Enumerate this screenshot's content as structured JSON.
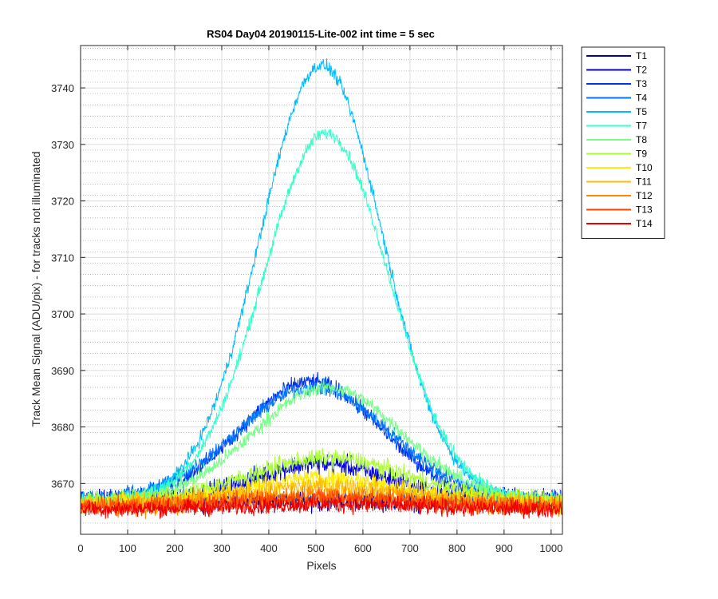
{
  "chart_data": {
    "type": "line",
    "title": "RS04 Day04 20190115-Lite-002 int time = 5 sec",
    "xlabel": "Pixels",
    "ylabel": "Track Mean Signal (ADU/pix) - for tracks not illuminated",
    "xlim": [
      0,
      1024
    ],
    "ylim": [
      3661,
      3747.5
    ],
    "xticks": [
      0,
      100,
      200,
      300,
      400,
      500,
      600,
      700,
      800,
      900,
      1000
    ],
    "yticks": [
      3670,
      3680,
      3690,
      3700,
      3710,
      3720,
      3730,
      3740
    ],
    "grid": true,
    "minor_grid": true,
    "legend_position": "outside-top-right",
    "series": [
      {
        "name": "T1",
        "color": "#0000aa",
        "baseline": 3667,
        "peak_x": 512,
        "amplitude": 0,
        "width": 260,
        "noise": 1.6
      },
      {
        "name": "T2",
        "color": "#0000dd",
        "baseline": 3667,
        "peak_x": 512,
        "amplitude": 6.5,
        "width": 200,
        "noise": 1.6
      },
      {
        "name": "T3",
        "color": "#0033ee",
        "baseline": 3667,
        "peak_x": 490,
        "amplitude": 21,
        "width": 210,
        "noise": 1.2
      },
      {
        "name": "T4",
        "color": "#0077ff",
        "baseline": 3667,
        "peak_x": 495,
        "amplitude": 20,
        "width": 230,
        "noise": 1.2
      },
      {
        "name": "T5",
        "color": "#00bbff",
        "baseline": 3667,
        "peak_x": 512,
        "amplitude": 77,
        "width": 185,
        "noise": 1.0
      },
      {
        "name": "T7",
        "color": "#33ffcc",
        "baseline": 3667,
        "peak_x": 522,
        "amplitude": 65,
        "width": 190,
        "noise": 1.0
      },
      {
        "name": "T8",
        "color": "#77ff88",
        "baseline": 3667,
        "peak_x": 525,
        "amplitude": 20,
        "width": 220,
        "noise": 1.1
      },
      {
        "name": "T9",
        "color": "#aaff33",
        "baseline": 3667,
        "peak_x": 525,
        "amplitude": 7.5,
        "width": 230,
        "noise": 1.4
      },
      {
        "name": "T10",
        "color": "#ffee00",
        "baseline": 3666.5,
        "peak_x": 520,
        "amplitude": 4.5,
        "width": 230,
        "noise": 1.5
      },
      {
        "name": "T11",
        "color": "#ffbb00",
        "baseline": 3666.5,
        "peak_x": 520,
        "amplitude": 3,
        "width": 230,
        "noise": 1.5
      },
      {
        "name": "T12",
        "color": "#ff8800",
        "baseline": 3666,
        "peak_x": 520,
        "amplitude": 2,
        "width": 230,
        "noise": 1.5
      },
      {
        "name": "T13",
        "color": "#ff4400",
        "baseline": 3666,
        "peak_x": 520,
        "amplitude": 1.5,
        "width": 230,
        "noise": 1.4
      },
      {
        "name": "T14",
        "color": "#ee0000",
        "baseline": 3665.5,
        "peak_x": 520,
        "amplitude": 0.8,
        "width": 230,
        "noise": 1.3
      }
    ]
  }
}
